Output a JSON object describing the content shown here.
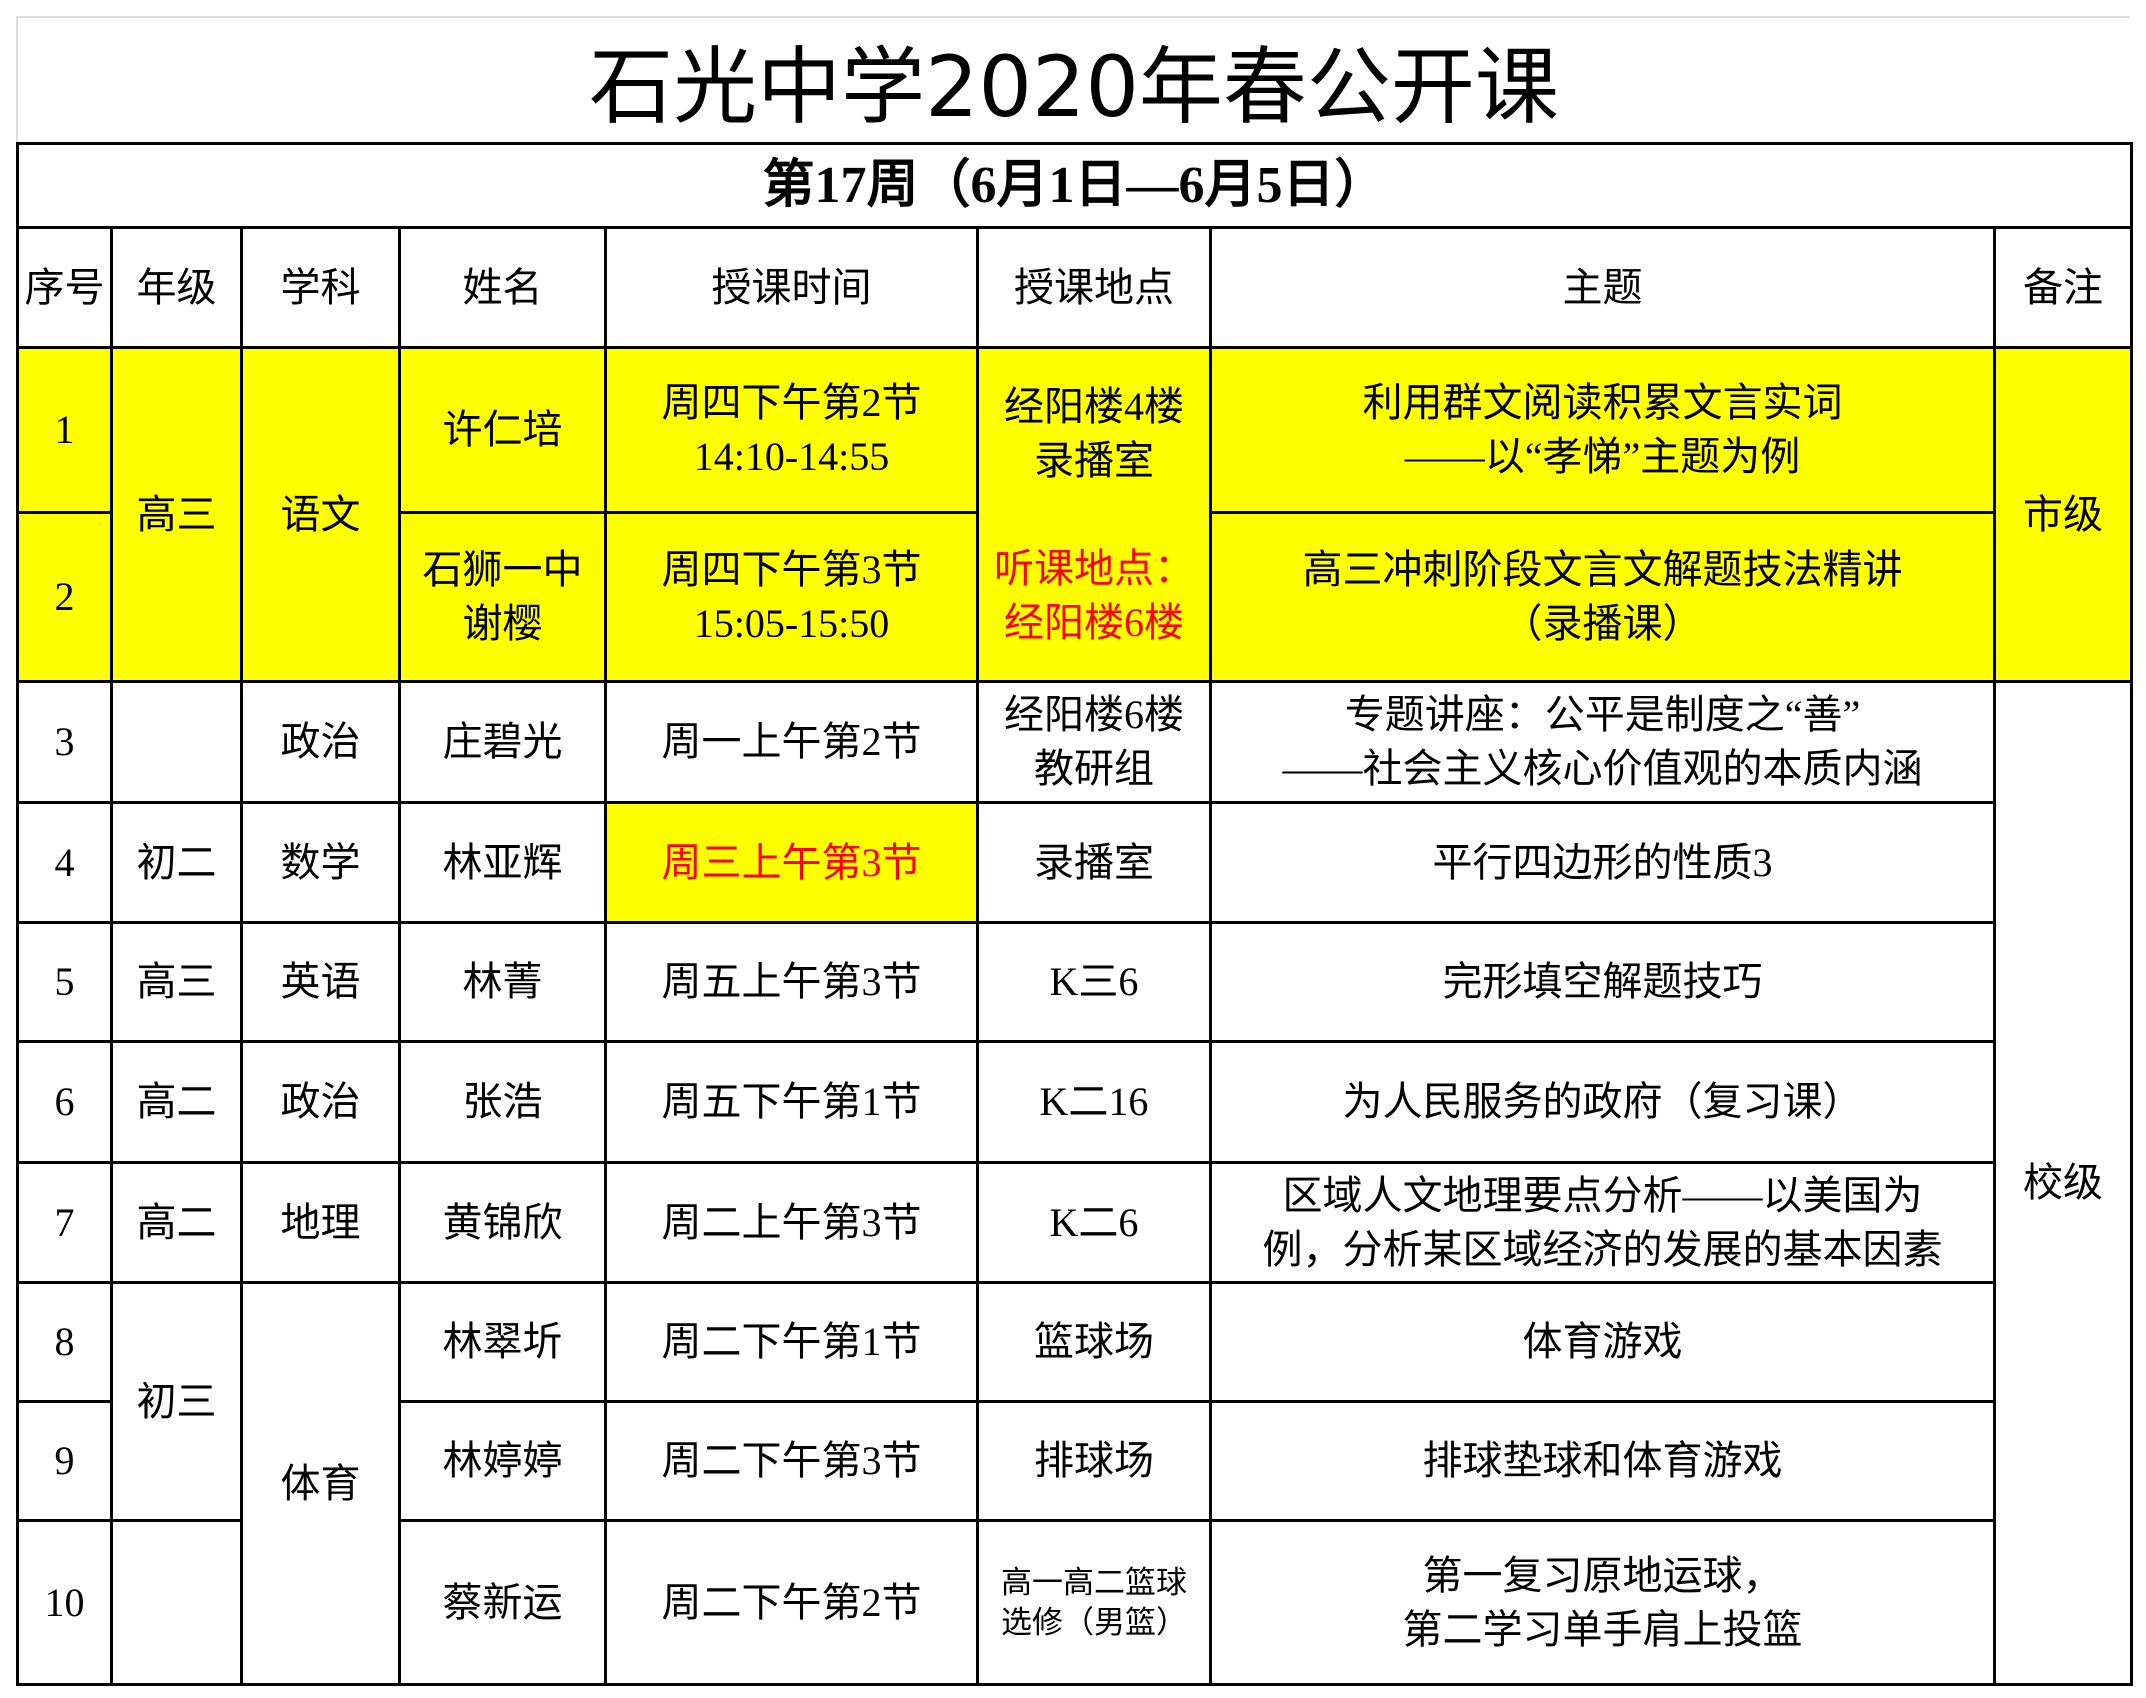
{
  "title": "石光中学2020年春公开课",
  "week": "第17周（6月1日—6月5日）",
  "headers": [
    "序号",
    "年级",
    "学科",
    "姓名",
    "授课时间",
    "授课地点",
    "主题",
    "备注"
  ],
  "highlight_color": "#ffff00",
  "alert_color": "#ff0000",
  "rows": [
    {
      "no": "1",
      "grade": "高三",
      "subject": "语文",
      "name": "许仁培",
      "time": "周四下午第2节",
      "time2": "14:10-14:55",
      "place": "经阳楼4楼",
      "place2": "录播室",
      "topic": "利用群文阅读积累文言实词",
      "topic2": "——以“孝悌”主题为例",
      "note": "市级"
    },
    {
      "no": "2",
      "name": "石狮一中",
      "name2": "谢樱",
      "time": "周四下午第3节",
      "time2": "15:05-15:50",
      "place_label": "听课地点：",
      "place": "经阳楼6楼",
      "topic": "高三冲刺阶段文言文解题技法精讲",
      "topic2": "（录播课）"
    },
    {
      "no": "3",
      "grade": "",
      "subject": "政治",
      "name": "庄碧光",
      "time": "周一上午第2节",
      "place": "经阳楼6楼",
      "place2": "教研组",
      "topic": "专题讲座：公平是制度之“善”",
      "topic2": "——社会主义核心价值观的本质内涵",
      "note": "校级"
    },
    {
      "no": "4",
      "grade": "初二",
      "subject": "数学",
      "name": "林亚辉",
      "time": "周三上午第3节",
      "place": "录播室",
      "topic": "平行四边形的性质3"
    },
    {
      "no": "5",
      "grade": "高三",
      "subject": "英语",
      "name": "林菁",
      "time": "周五上午第3节",
      "place": "K三6",
      "topic": "完形填空解题技巧"
    },
    {
      "no": "6",
      "grade": "高二",
      "subject": "政治",
      "name": "张浩",
      "time": "周五下午第1节",
      "place": "K二16",
      "topic": "为人民服务的政府（复习课）"
    },
    {
      "no": "7",
      "grade": "高二",
      "subject": "地理",
      "name": "黄锦欣",
      "time": "周二上午第3节",
      "place": "K二6",
      "topic": "区域人文地理要点分析——以美国为",
      "topic2": "例，分析某区域经济的发展的基本因素"
    },
    {
      "no": "8",
      "grade": "初三",
      "subject": "体育",
      "name": "林翠圻",
      "time": "周二下午第1节",
      "place": "篮球场",
      "topic": "体育游戏"
    },
    {
      "no": "9",
      "name": "林婷婷",
      "time": "周二下午第3节",
      "place": "排球场",
      "topic": "排球垫球和体育游戏"
    },
    {
      "no": "10",
      "grade": "",
      "name": "蔡新运",
      "time": "周二下午第2节",
      "place": "高一高二篮球",
      "place2": "选修（男篮）",
      "topic": "第一复习原地运球，",
      "topic2": "第二学习单手肩上投篮"
    }
  ]
}
